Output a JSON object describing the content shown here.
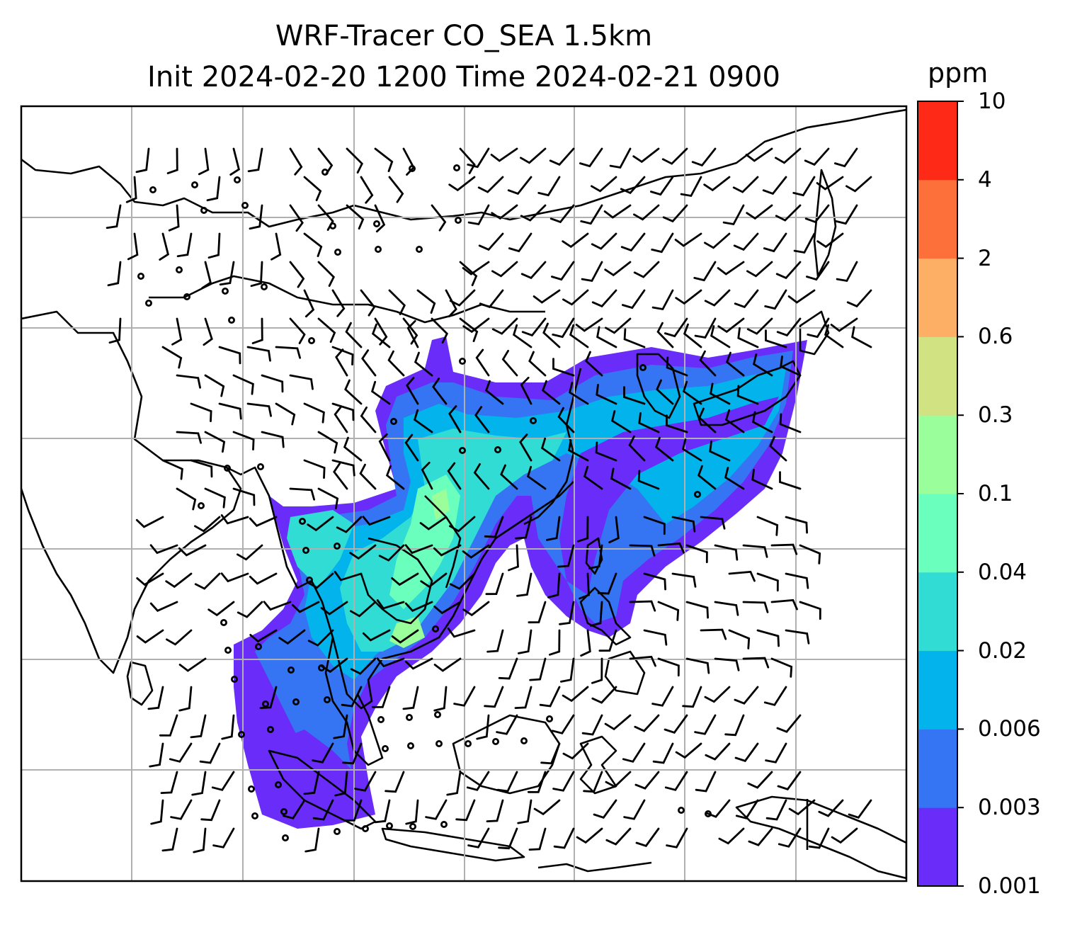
{
  "title": {
    "line1": "WRF-Tracer CO_SEA 1.5km",
    "line2": "Init 2024-02-20 1200 Time 2024-02-21 0900"
  },
  "colorbar": {
    "unit": "ppm",
    "levels": [
      "0.001",
      "0.003",
      "0.006",
      "0.02",
      "0.04",
      "0.1",
      "0.3",
      "0.6",
      "2",
      "4",
      "10"
    ],
    "colors": [
      "#6a2cf8",
      "#3574f2",
      "#03b3ec",
      "#30dcd4",
      "#6affbc",
      "#9afe9a",
      "#d1e283",
      "#fdb065",
      "#fd7039",
      "#fe2a17"
    ]
  },
  "map": {
    "gridlines": true,
    "land_outline_color": "#000000",
    "wind_barbs": true
  }
}
